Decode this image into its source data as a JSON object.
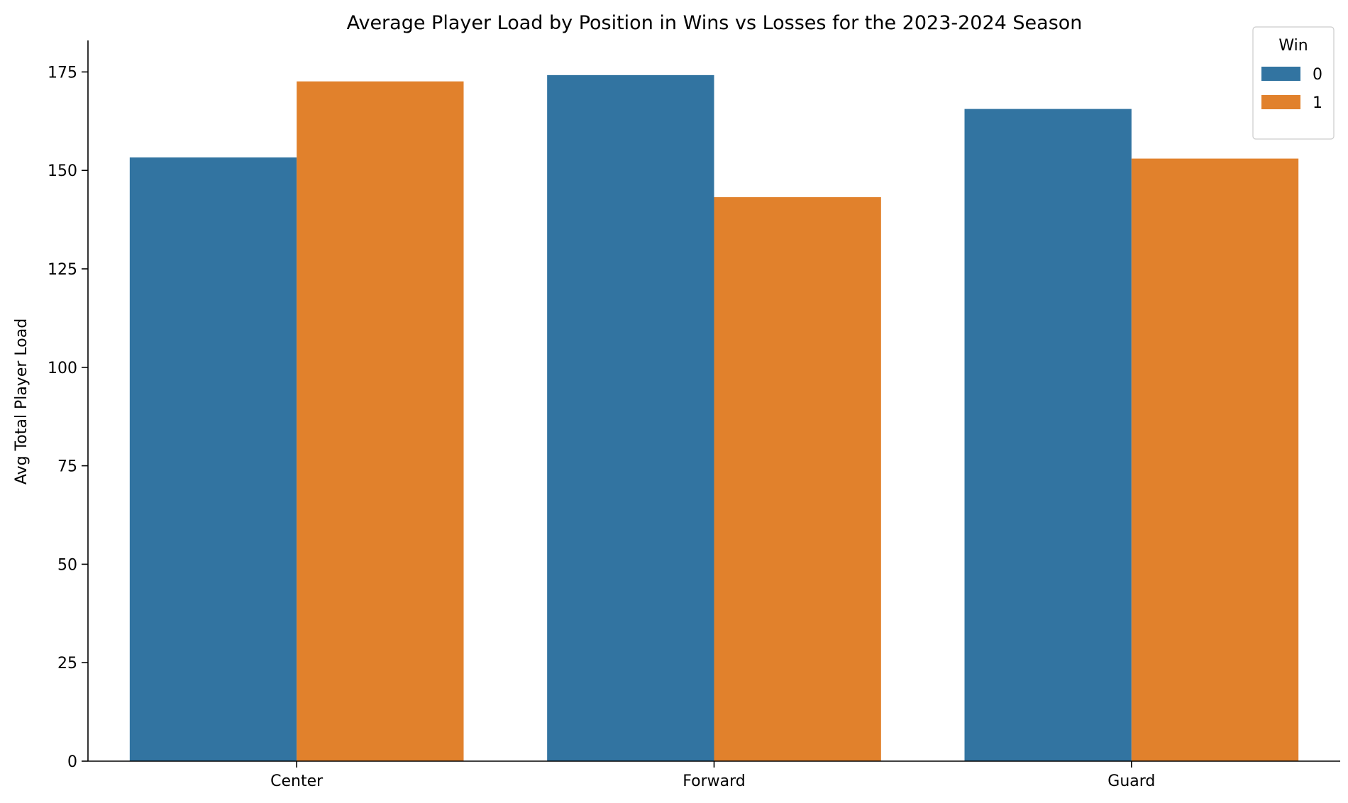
{
  "chart_data": {
    "type": "bar",
    "title": "Average Player Load by Position in Wins vs Losses for the 2023-2024 Season",
    "xlabel": "",
    "ylabel": "Avg Total Player Load",
    "categories": [
      "Center",
      "Forward",
      "Guard"
    ],
    "series": [
      {
        "name": "0",
        "values": [
          153.3,
          174.2,
          165.6
        ],
        "color": "#3274a1"
      },
      {
        "name": "1",
        "values": [
          172.6,
          143.2,
          153.0
        ],
        "color": "#e1812c"
      }
    ],
    "ylim": [
      0,
      183
    ],
    "yticks": [
      0,
      25,
      50,
      75,
      100,
      125,
      150,
      175
    ],
    "grid": false,
    "legend": {
      "title": "Win",
      "placement": "top-right"
    }
  }
}
